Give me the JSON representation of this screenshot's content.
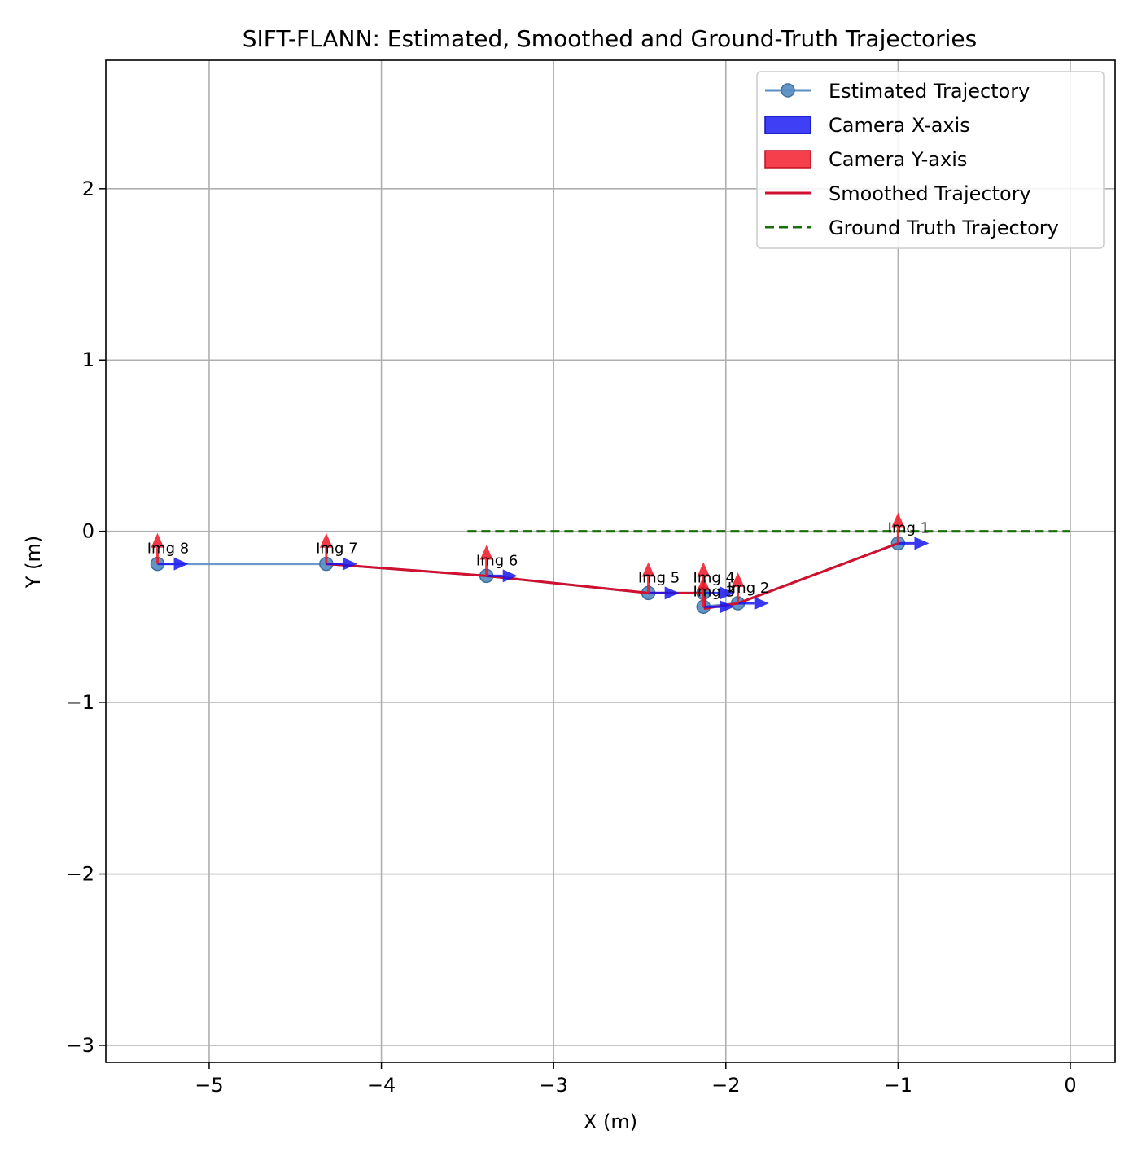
{
  "chart_data": {
    "type": "line",
    "title": "SIFT-FLANN: Estimated, Smoothed and Ground-Truth Trajectories",
    "xlabel": "X (m)",
    "ylabel": "Y (m)",
    "xlim": [
      -5.6,
      0.26
    ],
    "ylim": [
      -3.1,
      2.75
    ],
    "xticks": [
      -5,
      -4,
      -3,
      -2,
      -1,
      0
    ],
    "yticks": [
      -3,
      -2,
      -1,
      0,
      1,
      2
    ],
    "xtick_labels": [
      "−5",
      "−4",
      "−3",
      "−2",
      "−1",
      "0"
    ],
    "ytick_labels": [
      "−3",
      "−2",
      "−1",
      "0",
      "1",
      "2"
    ],
    "grid": true,
    "legend_position": "top-right",
    "colors": {
      "estimated": "#5b8fc4",
      "camera_x": "#1515f0",
      "camera_y": "#f01525",
      "smoothed": "#d0102e",
      "ground_truth": "#1a6e08",
      "grid": "#b0b0b0"
    },
    "series": [
      {
        "name": "Estimated Trajectory",
        "x": [
          -1.0,
          -1.93,
          -2.13,
          -2.13,
          -2.45,
          -3.39,
          -4.32,
          -5.3
        ],
        "y": [
          -0.07,
          -0.42,
          -0.44,
          -0.36,
          -0.36,
          -0.26,
          -0.19,
          -0.19
        ]
      },
      {
        "name": "Smoothed Trajectory",
        "x": [
          -1.0,
          -1.93,
          -2.12,
          -2.12,
          -2.45,
          -3.39,
          -4.32
        ],
        "y": [
          -0.07,
          -0.42,
          -0.45,
          -0.36,
          -0.36,
          -0.26,
          -0.19
        ]
      },
      {
        "name": "Ground Truth Trajectory",
        "x": [
          -3.5,
          0.0
        ],
        "y": [
          0.0,
          0.0
        ]
      }
    ],
    "legend_entries": [
      "Estimated Trajectory",
      "Camera X-axis",
      "Camera Y-axis",
      "Smoothed Trajectory",
      "Ground Truth Trajectory"
    ],
    "point_labels": [
      {
        "text": "Img 1",
        "x": -1.0,
        "y": -0.07
      },
      {
        "text": "Img 2",
        "x": -1.93,
        "y": -0.42
      },
      {
        "text": "Img 3",
        "x": -2.13,
        "y": -0.44
      },
      {
        "text": "Img 4",
        "x": -2.13,
        "y": -0.36
      },
      {
        "text": "Img 5",
        "x": -2.45,
        "y": -0.36
      },
      {
        "text": "Img 6",
        "x": -3.39,
        "y": -0.26
      },
      {
        "text": "Img 7",
        "x": -4.32,
        "y": -0.19
      },
      {
        "text": "Img 8",
        "x": -5.3,
        "y": -0.19
      }
    ],
    "camera_axes": {
      "x_axis_vector": [
        0.18,
        0.0
      ],
      "y_axis_vector": [
        0.0,
        0.18
      ]
    }
  }
}
